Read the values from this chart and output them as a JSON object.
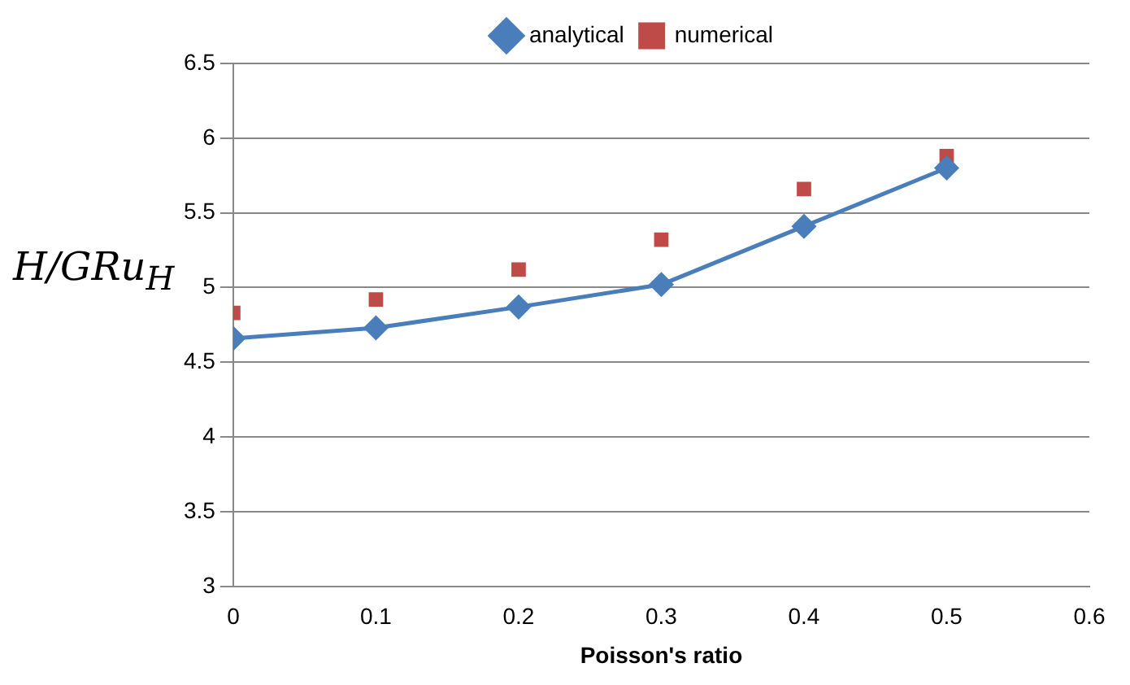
{
  "chart_data": {
    "type": "line",
    "xlabel": "Poisson's ratio",
    "ylabel": "H/GRu$_{H}$",
    "x": [
      0,
      0.1,
      0.2,
      0.3,
      0.4,
      0.5
    ],
    "series": [
      {
        "name": "analytical",
        "type": "line",
        "color": "#4a7ebb",
        "marker": "diamond",
        "line_style": "solid",
        "values": [
          4.66,
          4.73,
          4.87,
          5.02,
          5.41,
          5.8
        ]
      },
      {
        "name": "numerical",
        "type": "scatter",
        "color": "#be4b48",
        "marker": "square",
        "values": [
          4.83,
          4.92,
          5.12,
          5.32,
          5.66,
          5.88
        ]
      }
    ],
    "xlim": [
      0,
      0.6
    ],
    "xticks": [
      0,
      0.1,
      0.2,
      0.3,
      0.4,
      0.5,
      0.6
    ],
    "ylim": [
      3,
      6.5
    ],
    "yticks": [
      3,
      3.5,
      4,
      4.5,
      5,
      5.5,
      6,
      6.5
    ],
    "grid": "y",
    "legend": "top"
  }
}
